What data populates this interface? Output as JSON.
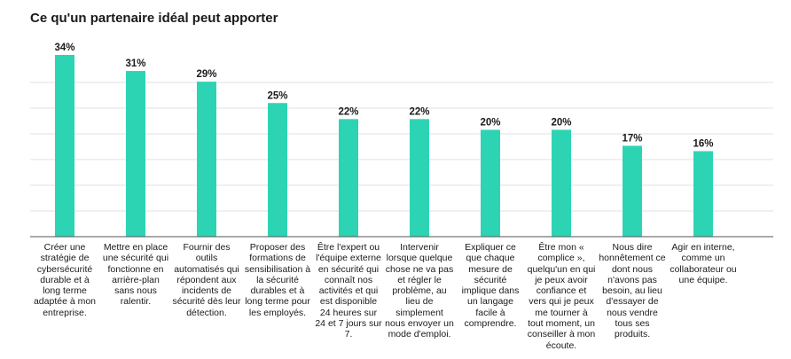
{
  "chart_data": {
    "type": "bar",
    "title": "Ce qu'un partenaire idéal peut apporter",
    "categories": [
      "Créer une stratégie de cybersécurité durable et à long terme adaptée à mon entreprise.",
      "Mettre en place une sécurité qui fonctionne en arrière-plan sans nous ralentir.",
      "Fournir des outils automatisés qui répondent aux incidents de sécurité dès leur détection.",
      "Proposer des formations de sensibilisation à la sécurité durables et à long terme pour les employés.",
      "Être l'expert ou l'équipe externe en sécurité qui connaît nos activités et qui est disponible 24 heures sur 24 et 7 jours sur 7.",
      "Intervenir lorsque quelque chose ne va pas et régler le problème, au lieu de simplement nous envoyer un mode d'emploi.",
      "Expliquer ce que chaque mesure de sécurité implique dans un langage facile à comprendre.",
      "Être mon « complice », quelqu'un en qui je peux avoir confiance et vers qui je peux me tourner à tout moment, un conseiller à mon écoute.",
      "Nous dire honnêtement ce dont nous n'avons pas besoin, au lieu d'essayer de nous vendre tous ses produits.",
      "Agir en interne, comme un collaborateur ou une équipe."
    ],
    "values": [
      34,
      31,
      29,
      25,
      22,
      22,
      20,
      20,
      17,
      16
    ],
    "data_labels": [
      "34%",
      "31%",
      "29%",
      "25%",
      "22%",
      "22%",
      "20%",
      "20%",
      "17%",
      "16%"
    ],
    "ylim": [
      0,
      40
    ],
    "grid": true,
    "colors": {
      "bar": "#2dd4b4",
      "grid": "#e2e2e2",
      "axis": "#555555",
      "text": "#1a1a1a"
    }
  }
}
